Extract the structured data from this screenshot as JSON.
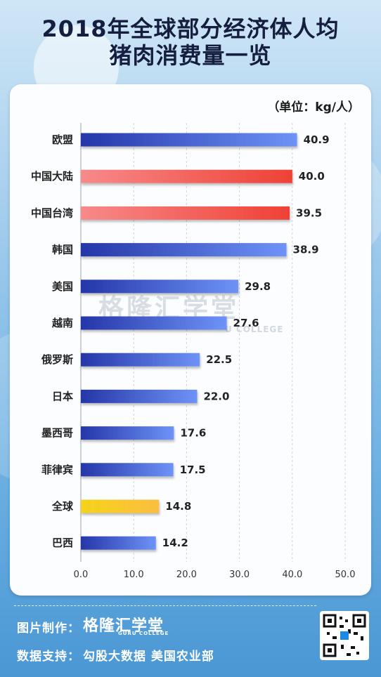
{
  "title_line1": "2018年全球部分经济体人均",
  "title_line2": "猪肉消费量一览",
  "unit_label": "（单位：kg/人）",
  "watermark": "格隆汇学堂",
  "watermark_sub": "U COLLEGE",
  "footer": {
    "made_by_label": "图片制作：",
    "logo": "格隆汇学堂",
    "logo_sub": "GURU COLLEGE",
    "source_label": "数据支持：",
    "source_text": "勾股大数据  美国农业部"
  },
  "colors": {
    "blue_start": "#2536a8",
    "blue_end": "#6e93f7",
    "red_start": "#f78a8a",
    "red_end": "#ef4136",
    "yellow_start": "#f5d31b",
    "yellow_end": "#fbbe40"
  },
  "chart_data": {
    "type": "bar",
    "orientation": "horizontal",
    "categories": [
      "欧盟",
      "中国大陆",
      "中国台湾",
      "韩国",
      "美国",
      "越南",
      "俄罗斯",
      "日本",
      "墨西哥",
      "菲律宾",
      "全球",
      "巴西"
    ],
    "values": [
      40.9,
      40.0,
      39.5,
      38.9,
      29.8,
      27.6,
      22.5,
      22.0,
      17.6,
      17.5,
      14.8,
      14.2
    ],
    "value_labels": [
      "40.9",
      "40.0",
      "39.5",
      "38.9",
      "29.8",
      "27.6",
      "22.5",
      "22.0",
      "17.6",
      "17.5",
      "14.8",
      "14.2"
    ],
    "bar_color_keys": [
      "blue",
      "red",
      "red",
      "blue",
      "blue",
      "blue",
      "blue",
      "blue",
      "blue",
      "blue",
      "yellow",
      "blue"
    ],
    "xlim": [
      0,
      50
    ],
    "xticks": [
      "0.0",
      "10.0",
      "20.0",
      "30.0",
      "40.0",
      "50.0"
    ],
    "grid": "vertical dashed"
  }
}
